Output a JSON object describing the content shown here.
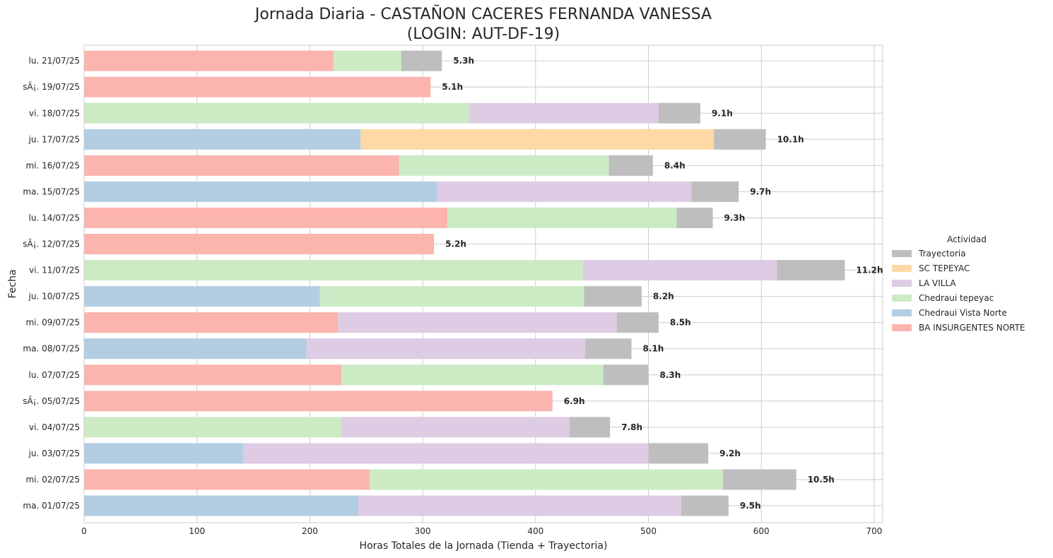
{
  "chart_data": {
    "type": "bar",
    "orientation": "horizontal",
    "stacked": true,
    "title_line1": "Jornada Diaria - CASTAÑON CACERES FERNANDA VANESSA",
    "title_line2": "(LOGIN: AUT-DF-19)",
    "xlabel": "Horas Totales de la Jornada (Tienda + Trayectoria)",
    "ylabel": "Fecha",
    "xlim": [
      0,
      708
    ],
    "xticks": [
      "0",
      "100",
      "200",
      "300",
      "400",
      "500",
      "600",
      "700"
    ],
    "grid": true,
    "legend_title": "Actividad",
    "legend_position": "right",
    "colors": {
      "BA INSURGENTES NORTE": "#fbb4ae",
      "Chedraui Vista Norte": "#b3cde3",
      "Chedraui tepeyac": "#ccebc5",
      "LA VILLA": "#decbe4",
      "SC TEPEYAC": "#fed9a6",
      "Trayectoria": "#bebebe"
    },
    "legend_entries": [
      "Trayectoria",
      "SC TEPEYAC",
      "LA VILLA",
      "Chedraui tepeyac",
      "Chedraui Vista Norte",
      "BA INSURGENTES NORTE"
    ],
    "categories": [
      "ma. 01/07/25",
      "mi. 02/07/25",
      "ju. 03/07/25",
      "vi. 04/07/25",
      "sÃ¡. 05/07/25",
      "lu. 07/07/25",
      "ma. 08/07/25",
      "mi. 09/07/25",
      "ju. 10/07/25",
      "vi. 11/07/25",
      "sÃ¡. 12/07/25",
      "lu. 14/07/25",
      "ma. 15/07/25",
      "mi. 16/07/25",
      "ju. 17/07/25",
      "vi. 18/07/25",
      "sÃ¡. 19/07/25",
      "lu. 21/07/25"
    ],
    "bars": [
      {
        "segments": [
          {
            "series": "Chedraui Vista Norte",
            "value": 243
          },
          {
            "series": "LA VILLA",
            "value": 286
          },
          {
            "series": "Trayectoria",
            "value": 42
          }
        ],
        "total": 571,
        "label": "9.5h"
      },
      {
        "segments": [
          {
            "series": "BA INSURGENTES NORTE",
            "value": 253
          },
          {
            "series": "Chedraui tepeyac",
            "value": 313
          },
          {
            "series": "Trayectoria",
            "value": 65
          }
        ],
        "total": 631,
        "label": "10.5h"
      },
      {
        "segments": [
          {
            "series": "Chedraui Vista Norte",
            "value": 141
          },
          {
            "series": "LA VILLA",
            "value": 359
          },
          {
            "series": "Trayectoria",
            "value": 53
          }
        ],
        "total": 553,
        "label": "9.2h"
      },
      {
        "segments": [
          {
            "series": "Chedraui tepeyac",
            "value": 228
          },
          {
            "series": "LA VILLA",
            "value": 202
          },
          {
            "series": "Trayectoria",
            "value": 36
          }
        ],
        "total": 466,
        "label": "7.8h"
      },
      {
        "segments": [
          {
            "series": "BA INSURGENTES NORTE",
            "value": 415
          }
        ],
        "total": 415,
        "label": "6.9h"
      },
      {
        "segments": [
          {
            "series": "BA INSURGENTES NORTE",
            "value": 228
          },
          {
            "series": "Chedraui tepeyac",
            "value": 232
          },
          {
            "series": "Trayectoria",
            "value": 40
          }
        ],
        "total": 500,
        "label": "8.3h"
      },
      {
        "segments": [
          {
            "series": "Chedraui Vista Norte",
            "value": 197
          },
          {
            "series": "LA VILLA",
            "value": 247
          },
          {
            "series": "Trayectoria",
            "value": 41
          }
        ],
        "total": 485,
        "label": "8.1h"
      },
      {
        "segments": [
          {
            "series": "BA INSURGENTES NORTE",
            "value": 225
          },
          {
            "series": "LA VILLA",
            "value": 247
          },
          {
            "series": "Trayectoria",
            "value": 37
          }
        ],
        "total": 509,
        "label": "8.5h"
      },
      {
        "segments": [
          {
            "series": "Chedraui Vista Norte",
            "value": 209
          },
          {
            "series": "Chedraui tepeyac",
            "value": 234
          },
          {
            "series": "Trayectoria",
            "value": 51
          }
        ],
        "total": 494,
        "label": "8.2h"
      },
      {
        "segments": [
          {
            "series": "Chedraui tepeyac",
            "value": 442
          },
          {
            "series": "LA VILLA",
            "value": 172
          },
          {
            "series": "Trayectoria",
            "value": 60
          }
        ],
        "total": 674,
        "label": "11.2h"
      },
      {
        "segments": [
          {
            "series": "BA INSURGENTES NORTE",
            "value": 310
          }
        ],
        "total": 310,
        "label": "5.2h"
      },
      {
        "segments": [
          {
            "series": "BA INSURGENTES NORTE",
            "value": 322
          },
          {
            "series": "Chedraui tepeyac",
            "value": 203
          },
          {
            "series": "Trayectoria",
            "value": 32
          }
        ],
        "total": 557,
        "label": "9.3h"
      },
      {
        "segments": [
          {
            "series": "Chedraui Vista Norte",
            "value": 313
          },
          {
            "series": "LA VILLA",
            "value": 225
          },
          {
            "series": "Trayectoria",
            "value": 42
          }
        ],
        "total": 580,
        "label": "9.7h"
      },
      {
        "segments": [
          {
            "series": "BA INSURGENTES NORTE",
            "value": 279
          },
          {
            "series": "Chedraui tepeyac",
            "value": 186
          },
          {
            "series": "Trayectoria",
            "value": 39
          }
        ],
        "total": 504,
        "label": "8.4h"
      },
      {
        "segments": [
          {
            "series": "Chedraui Vista Norte",
            "value": 245
          },
          {
            "series": "SC TEPEYAC",
            "value": 313
          },
          {
            "series": "Trayectoria",
            "value": 46
          }
        ],
        "total": 604,
        "label": "10.1h"
      },
      {
        "segments": [
          {
            "series": "Chedraui tepeyac",
            "value": 341
          },
          {
            "series": "LA VILLA",
            "value": 168
          },
          {
            "series": "Trayectoria",
            "value": 37
          }
        ],
        "total": 546,
        "label": "9.1h"
      },
      {
        "segments": [
          {
            "series": "BA INSURGENTES NORTE",
            "value": 307
          }
        ],
        "total": 307,
        "label": "5.1h"
      },
      {
        "segments": [
          {
            "series": "BA INSURGENTES NORTE",
            "value": 221
          },
          {
            "series": "Chedraui tepeyac",
            "value": 60
          },
          {
            "series": "Trayectoria",
            "value": 36
          }
        ],
        "total": 317,
        "label": "5.3h"
      }
    ]
  }
}
